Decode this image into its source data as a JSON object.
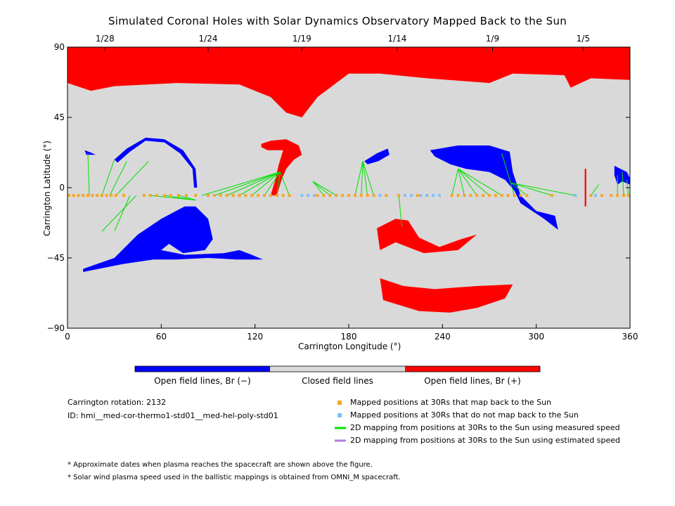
{
  "title": "Simulated Coronal Holes with Solar Dynamics Observatory Mapped Back to the Sun",
  "chart_data": {
    "type": "map",
    "xlabel": "Carrington Longitude (°)",
    "ylabel": "Carrington Latitude (°)",
    "xlim": [
      0,
      360
    ],
    "ylim": [
      -90,
      90
    ],
    "xticks": [
      "0",
      "60",
      "120",
      "180",
      "240",
      "300",
      "360"
    ],
    "yticks": [
      "90",
      "45",
      "0",
      "−45",
      "−90"
    ],
    "top_axis": {
      "labels": [
        {
          "date": "1/28",
          "lon": 24
        },
        {
          "date": "1/24",
          "lon": 90
        },
        {
          "date": "1/19",
          "lon": 150
        },
        {
          "date": "1/14",
          "lon": 211
        },
        {
          "date": "1/9",
          "lon": 272
        },
        {
          "date": "1/5",
          "lon": 330
        }
      ]
    },
    "background_color": "#d9d9d9",
    "regions": [
      {
        "name": "Open field lines, Br (+)",
        "color": "#ff0000",
        "areas": [
          "north polar cap",
          "mid-latitude patch near lon 125-145",
          "southern band lon 200-285",
          "southern patch lon 200-245",
          "narrow feature near lon 330"
        ]
      },
      {
        "name": "Open field lines, Br (−)",
        "color": "#0000ff",
        "areas": [
          "southern loop lon 10-125",
          "arc lon 30-85",
          "patch lon 190-205",
          "patch lon 230-315",
          "patch lon 350-360"
        ]
      }
    ],
    "mapped_points": {
      "maps_back": {
        "color": "#f5a623",
        "lat": -5,
        "lon": [
          1,
          4,
          7,
          10,
          13,
          16,
          19,
          22,
          25,
          28,
          31,
          36,
          49,
          53,
          57,
          62,
          66,
          71,
          76,
          82,
          90,
          94,
          98,
          102,
          106,
          110,
          114,
          118,
          122,
          126,
          130,
          134,
          138,
          142,
          160,
          164,
          168,
          172,
          176,
          180,
          184,
          188,
          192,
          196,
          204,
          212,
          224,
          246,
          250,
          254,
          258,
          262,
          266,
          270,
          274,
          278,
          282,
          286,
          290,
          294,
          310,
          325,
          335,
          342,
          348,
          352,
          356,
          359
        ]
      },
      "no_map_back": {
        "color": "#7fbfff",
        "lat": -5,
        "lon": [
          150,
          154,
          158,
          200,
          216,
          220,
          226,
          230,
          234,
          238,
          325,
          338
        ]
      }
    },
    "mappings": [
      {
        "from": 14,
        "to": [
          13,
          22
        ]
      },
      {
        "from": 22,
        "to": [
          30,
          18
        ]
      },
      {
        "from": 27,
        "to": [
          38,
          17
        ]
      },
      {
        "from": 31,
        "to": [
          52,
          17
        ]
      },
      {
        "from": 40,
        "to": [
          30,
          -28
        ]
      },
      {
        "from": 44,
        "to": [
          22,
          -28
        ]
      },
      {
        "from": 53,
        "to": [
          82,
          -8
        ]
      },
      {
        "from": 62,
        "to": [
          82,
          -8
        ]
      },
      {
        "from": 71,
        "to": [
          82,
          -8
        ]
      },
      {
        "from": 86,
        "to": [
          136,
          10
        ]
      },
      {
        "from": 94,
        "to": [
          136,
          10
        ]
      },
      {
        "from": 102,
        "to": [
          136,
          10
        ]
      },
      {
        "from": 110,
        "to": [
          136,
          10
        ]
      },
      {
        "from": 118,
        "to": [
          136,
          10
        ]
      },
      {
        "from": 126,
        "to": [
          136,
          10
        ]
      },
      {
        "from": 134,
        "to": [
          136,
          10
        ]
      },
      {
        "from": 142,
        "to": [
          136,
          10
        ]
      },
      {
        "from": 164,
        "to": [
          157,
          4
        ]
      },
      {
        "from": 168,
        "to": [
          157,
          4
        ]
      },
      {
        "from": 172,
        "to": [
          157,
          4
        ]
      },
      {
        "from": 184,
        "to": [
          189,
          17
        ]
      },
      {
        "from": 188,
        "to": [
          189,
          17
        ]
      },
      {
        "from": 192,
        "to": [
          189,
          17
        ]
      },
      {
        "from": 196,
        "to": [
          189,
          17
        ]
      },
      {
        "from": 212,
        "to": [
          214,
          -25
        ]
      },
      {
        "from": 246,
        "to": [
          250,
          12
        ]
      },
      {
        "from": 254,
        "to": [
          250,
          12
        ]
      },
      {
        "from": 262,
        "to": [
          250,
          12
        ]
      },
      {
        "from": 270,
        "to": [
          250,
          12
        ]
      },
      {
        "from": 278,
        "to": [
          250,
          12
        ]
      },
      {
        "from": 286,
        "to": [
          278,
          22
        ]
      },
      {
        "from": 294,
        "to": [
          284,
          3
        ]
      },
      {
        "from": 310,
        "to": [
          284,
          3
        ]
      },
      {
        "from": 325,
        "to": [
          284,
          3
        ]
      },
      {
        "from": 335,
        "to": [
          340,
          2
        ]
      },
      {
        "from": 352,
        "to": [
          352,
          8
        ]
      },
      {
        "from": 356,
        "to": [
          355,
          10
        ]
      },
      {
        "from": 359,
        "to": [
          358,
          5
        ]
      }
    ]
  },
  "colorbar": {
    "segments": [
      {
        "label": "Open field lines, Br (−)",
        "color": "#0000ff"
      },
      {
        "label": "Closed field lines",
        "color": "#d9d9d9"
      },
      {
        "label": "Open field lines, Br (+)",
        "color": "#ff0000"
      }
    ]
  },
  "info": {
    "rotation": "Carrington rotation: 2132",
    "id": "ID: hmi__med-cor-thermo1-std01__med-hel-poly-std01"
  },
  "legend": [
    {
      "label": "Mapped positions at 30Rs that map back to the Sun",
      "color": "#f5a623",
      "kind": "square"
    },
    {
      "label": "Mapped positions at 30Rs that do not map back to the Sun",
      "color": "#7fbfff",
      "kind": "square"
    },
    {
      "label": "2D mapping from positions at 30Rs to the Sun using measured speed",
      "color": "#00e000",
      "kind": "line"
    },
    {
      "label": "2D mapping from positions at 30Rs to the Sun using estimated speed",
      "color": "#b57edc",
      "kind": "line"
    }
  ],
  "notes": [
    "* Approximate dates when plasma reaches the spacecraft are shown above the figure.",
    "* Solar wind plasma speed used in the ballistic mappings is obtained from OMNI_M spacecraft."
  ]
}
